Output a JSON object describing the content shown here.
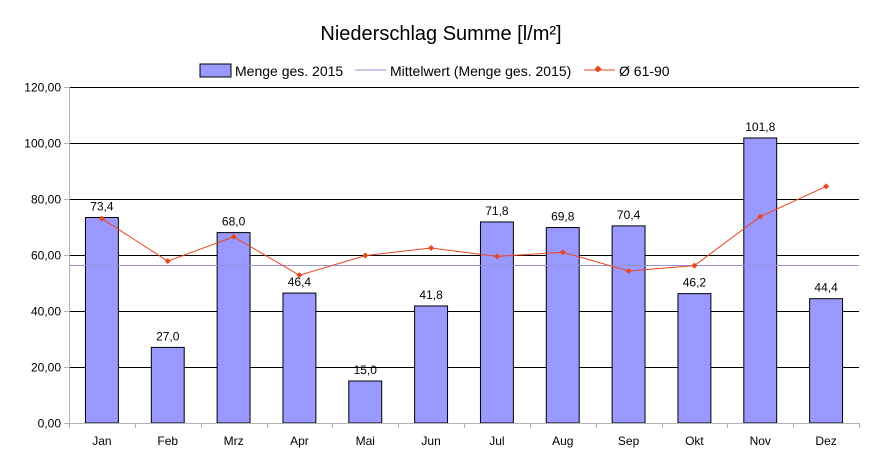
{
  "chart_data": {
    "type": "bar",
    "title": "Niederschlag Summe [l/m²]",
    "categories": [
      "Jan",
      "Feb",
      "Mrz",
      "Apr",
      "Mai",
      "Jun",
      "Jul",
      "Aug",
      "Sep",
      "Okt",
      "Nov",
      "Dez"
    ],
    "series": [
      {
        "name": "Menge ges. 2015",
        "kind": "bar",
        "color": "#9999ff",
        "values": [
          73.4,
          27.0,
          68.0,
          46.4,
          15.0,
          41.8,
          71.8,
          69.8,
          70.4,
          46.2,
          101.8,
          44.4
        ],
        "labels": [
          "73,4",
          "27,0",
          "68,0",
          "46,4",
          "15,0",
          "41,8",
          "71,8",
          "69,8",
          "70,4",
          "46,2",
          "101,8",
          "44,4"
        ]
      },
      {
        "name": "Mittelwert (Menge ges. 2015)",
        "kind": "hline",
        "color": "#9a8fdd",
        "value": 56.3
      },
      {
        "name": "Ø 61-90",
        "kind": "line",
        "color": "#e8461e",
        "values": [
          73.0,
          57.8,
          66.5,
          52.8,
          59.8,
          62.5,
          59.5,
          61.0,
          54.3,
          56.2,
          73.7,
          84.5
        ]
      }
    ],
    "ylim": [
      0,
      120
    ],
    "yticks": [
      "0,00",
      "20,00",
      "40,00",
      "60,00",
      "80,00",
      "100,00",
      "120,00"
    ],
    "grid": true,
    "legend": "top-center"
  }
}
